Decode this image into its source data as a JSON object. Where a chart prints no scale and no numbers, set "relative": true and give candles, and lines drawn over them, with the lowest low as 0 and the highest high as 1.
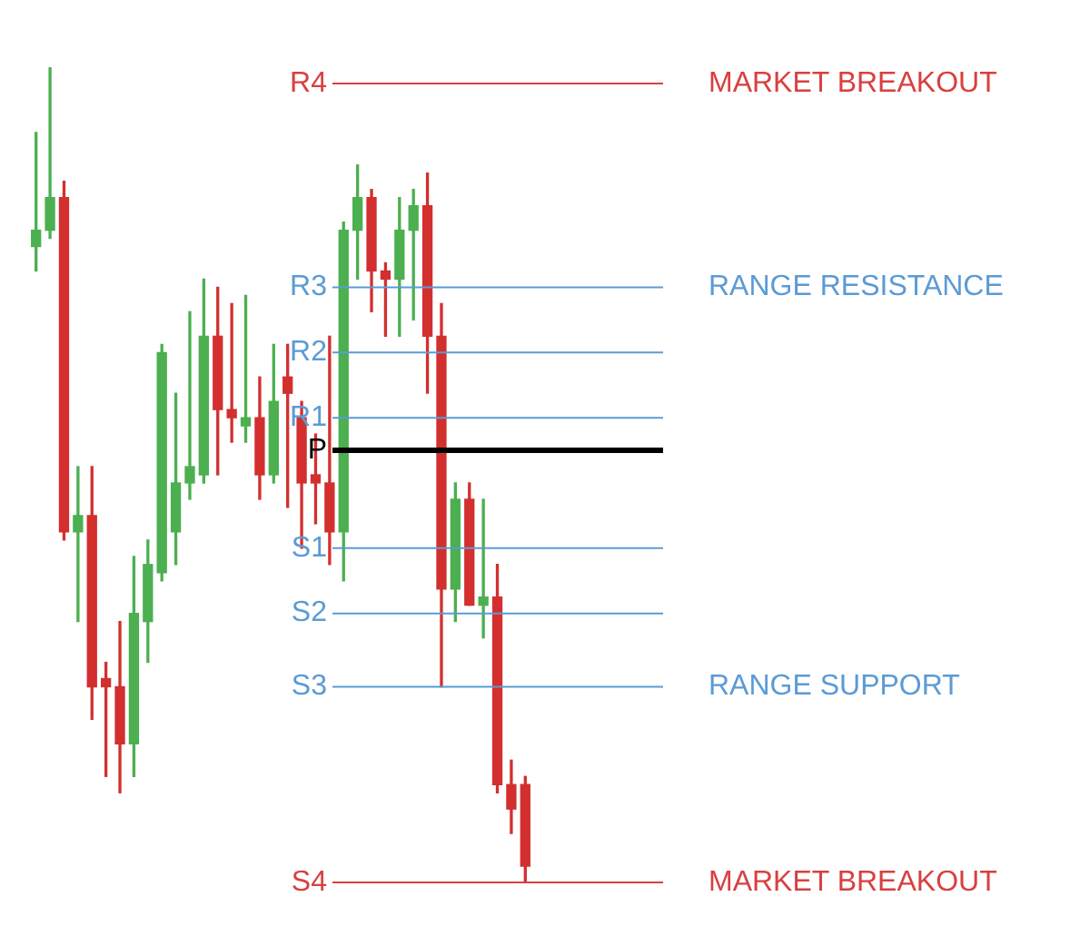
{
  "chart_data": {
    "type": "candlestick",
    "relative": true,
    "categories": [
      null,
      null,
      null,
      null,
      null,
      null,
      null,
      null,
      null,
      null,
      null,
      null,
      null,
      null,
      null,
      null,
      null,
      null,
      null,
      null,
      null,
      null,
      null,
      null,
      null,
      null,
      null,
      null,
      null,
      null,
      null,
      null,
      null,
      null,
      null,
      null
    ],
    "ohlc": [
      [
        0.78,
        0.92,
        0.75,
        0.8
      ],
      [
        0.8,
        1.0,
        0.79,
        0.84
      ],
      [
        0.84,
        0.86,
        0.42,
        0.43
      ],
      [
        0.43,
        0.51,
        0.32,
        0.45
      ],
      [
        0.45,
        0.51,
        0.2,
        0.24
      ],
      [
        0.25,
        0.27,
        0.13,
        0.24
      ],
      [
        0.24,
        0.32,
        0.11,
        0.17
      ],
      [
        0.17,
        0.4,
        0.13,
        0.33
      ],
      [
        0.32,
        0.42,
        0.27,
        0.39
      ],
      [
        0.38,
        0.66,
        0.37,
        0.65
      ],
      [
        0.43,
        0.6,
        0.39,
        0.49
      ],
      [
        0.49,
        0.7,
        0.47,
        0.51
      ],
      [
        0.5,
        0.74,
        0.49,
        0.67
      ],
      [
        0.67,
        0.73,
        0.5,
        0.58
      ],
      [
        0.58,
        0.71,
        0.54,
        0.57
      ],
      [
        0.56,
        0.72,
        0.54,
        0.57
      ],
      [
        0.57,
        0.62,
        0.47,
        0.5
      ],
      [
        0.5,
        0.66,
        0.49,
        0.59
      ],
      [
        0.62,
        0.66,
        0.46,
        0.6
      ],
      [
        0.57,
        0.59,
        0.41,
        0.49
      ],
      [
        0.5,
        0.55,
        0.44,
        0.49
      ],
      [
        0.49,
        0.67,
        0.39,
        0.43
      ],
      [
        0.43,
        0.81,
        0.37,
        0.8
      ],
      [
        0.8,
        0.88,
        0.74,
        0.84
      ],
      [
        0.84,
        0.85,
        0.7,
        0.75
      ],
      [
        0.75,
        0.76,
        0.67,
        0.74
      ],
      [
        0.74,
        0.84,
        0.67,
        0.8
      ],
      [
        0.8,
        0.85,
        0.69,
        0.83
      ],
      [
        0.83,
        0.87,
        0.6,
        0.67
      ],
      [
        0.67,
        0.71,
        0.24,
        0.36
      ],
      [
        0.36,
        0.49,
        0.32,
        0.47
      ],
      [
        0.47,
        0.49,
        0.34,
        0.34
      ],
      [
        0.34,
        0.47,
        0.3,
        0.35
      ],
      [
        0.35,
        0.39,
        0.11,
        0.12
      ],
      [
        0.12,
        0.15,
        0.06,
        0.09
      ],
      [
        0.12,
        0.13,
        0,
        0.02
      ]
    ],
    "colors": [
      "#4caf50",
      "#4caf50",
      "#d32f2f",
      "#4caf50",
      "#d32f2f",
      "#d32f2f",
      "#d32f2f",
      "#4caf50",
      "#4caf50",
      "#4caf50",
      "#4caf50",
      "#4caf50",
      "#4caf50",
      "#d32f2f",
      "#d32f2f",
      "#4caf50",
      "#d32f2f",
      "#4caf50",
      "#d32f2f",
      "#d32f2f",
      "#d32f2f",
      "#d32f2f",
      "#4caf50",
      "#4caf50",
      "#d32f2f",
      "#d32f2f",
      "#4caf50",
      "#4caf50",
      "#d32f2f",
      "#d32f2f",
      "#4caf50",
      "#d32f2f",
      "#4caf50",
      "#d32f2f",
      "#d32f2f",
      "#d32f2f"
    ],
    "ref_lines": [
      {
        "axis": "y",
        "value": 0.98,
        "label": "R4",
        "color": "#d94040"
      },
      {
        "axis": "y",
        "value": 0.73,
        "label": "R3",
        "color": "#5b9bd5"
      },
      {
        "axis": "y",
        "value": 0.65,
        "label": "R2",
        "color": "#5b9bd5"
      },
      {
        "axis": "y",
        "value": 0.57,
        "label": "R1",
        "color": "#5b9bd5"
      },
      {
        "axis": "y",
        "value": 0.53,
        "label": "P",
        "color": "#000000"
      },
      {
        "axis": "y",
        "value": 0.41,
        "label": "S1",
        "color": "#5b9bd5"
      },
      {
        "axis": "y",
        "value": 0.33,
        "label": "S2",
        "color": "#5b9bd5"
      },
      {
        "axis": "y",
        "value": 0.24,
        "label": "S3",
        "color": "#5b9bd5"
      },
      {
        "axis": "y",
        "value": 0,
        "label": "S4",
        "color": "#d94040"
      }
    ],
    "annotations": [
      "MARKET BREAKOUT",
      "RANGE RESISTANCE",
      "RANGE SUPPORT",
      "MARKET BREAKOUT"
    ]
  }
}
